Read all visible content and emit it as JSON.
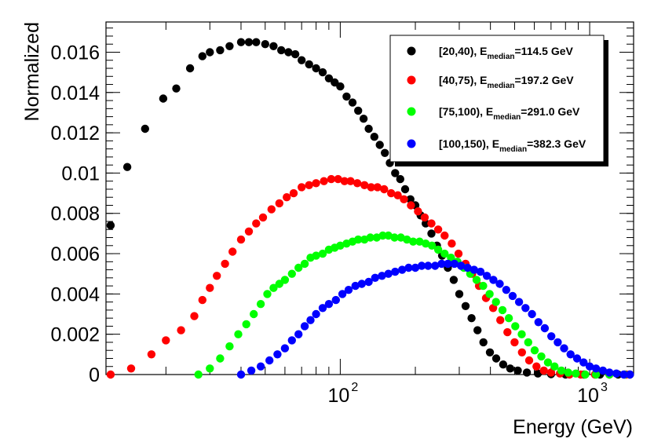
{
  "chart_data": {
    "type": "scatter",
    "title": "",
    "xlabel": "Energy (GeV)",
    "ylabel": "Normalized",
    "xscale": "log",
    "xlim": [
      11.5,
      1500
    ],
    "ylim": [
      0,
      0.0175
    ],
    "grid": false,
    "legend_position": "top-right",
    "y_tick_labels": [
      "0",
      "0.002",
      "0.004",
      "0.006",
      "0.008",
      "0.01",
      "0.012",
      "0.014",
      "0.016"
    ],
    "x_tick_labels": [
      {
        "base": "10",
        "exp": "2"
      },
      {
        "base": "10",
        "exp": "3"
      }
    ],
    "series": [
      {
        "name": "[20,40)",
        "legend_prefix": "[20,40), E",
        "legend_sub": "median",
        "legend_suffix": "=114.5 GeV",
        "color": "#000000",
        "points": [
          [
            12,
            0.0074
          ],
          [
            14,
            0.0103
          ],
          [
            16.5,
            0.0122
          ],
          [
            19.5,
            0.0137
          ],
          [
            22,
            0.0142
          ],
          [
            25,
            0.0152
          ],
          [
            28,
            0.0158
          ],
          [
            30,
            0.016
          ],
          [
            33,
            0.0161
          ],
          [
            36,
            0.0163
          ],
          [
            40,
            0.0165
          ],
          [
            43,
            0.0165
          ],
          [
            46,
            0.0165
          ],
          [
            50,
            0.0164
          ],
          [
            54,
            0.0163
          ],
          [
            58,
            0.0161
          ],
          [
            62,
            0.016
          ],
          [
            66,
            0.0159
          ],
          [
            70,
            0.0156
          ],
          [
            75,
            0.0154
          ],
          [
            80,
            0.0152
          ],
          [
            85,
            0.015
          ],
          [
            90,
            0.0147
          ],
          [
            95,
            0.0145
          ],
          [
            100,
            0.0143
          ],
          [
            106,
            0.0138
          ],
          [
            112,
            0.0135
          ],
          [
            118,
            0.0131
          ],
          [
            124,
            0.0127
          ],
          [
            130,
            0.0122
          ],
          [
            137,
            0.0118
          ],
          [
            144,
            0.0114
          ],
          [
            151,
            0.011
          ],
          [
            158,
            0.0105
          ],
          [
            166,
            0.01
          ],
          [
            174,
            0.0097
          ],
          [
            182,
            0.0092
          ],
          [
            191,
            0.0087
          ],
          [
            200,
            0.0084
          ],
          [
            210,
            0.0079
          ],
          [
            220,
            0.0075
          ],
          [
            232,
            0.007
          ],
          [
            244,
            0.0064
          ],
          [
            256,
            0.0059
          ],
          [
            270,
            0.0053
          ],
          [
            285,
            0.0047
          ],
          [
            300,
            0.004
          ],
          [
            318,
            0.0034
          ],
          [
            336,
            0.0028
          ],
          [
            355,
            0.0022
          ],
          [
            375,
            0.0016
          ],
          [
            398,
            0.0011
          ],
          [
            422,
            0.0008
          ],
          [
            450,
            0.0005
          ],
          [
            480,
            0.0003
          ],
          [
            515,
            0.0002
          ],
          [
            560,
            0.0001
          ],
          [
            620,
            5e-05
          ],
          [
            700,
            2e-05
          ],
          [
            800,
            0.0
          ],
          [
            950,
            0.0
          ],
          [
            1100,
            0.0
          ],
          [
            1300,
            0.0
          ],
          [
            1450,
            0.0
          ]
        ]
      },
      {
        "name": "[40,75)",
        "legend_prefix": "[40,75), E",
        "legend_sub": "median",
        "legend_suffix": "=197.2 GeV",
        "color": "#ff0000",
        "points": [
          [
            12,
            0.0
          ],
          [
            14.5,
            0.0003
          ],
          [
            17.5,
            0.001
          ],
          [
            20,
            0.0017
          ],
          [
            23,
            0.0022
          ],
          [
            26,
            0.0029
          ],
          [
            28,
            0.0037
          ],
          [
            30,
            0.0043
          ],
          [
            32,
            0.0049
          ],
          [
            34.5,
            0.0055
          ],
          [
            37,
            0.0061
          ],
          [
            40,
            0.0067
          ],
          [
            43,
            0.0071
          ],
          [
            46,
            0.0075
          ],
          [
            49,
            0.0078
          ],
          [
            53,
            0.0082
          ],
          [
            57,
            0.0085
          ],
          [
            61,
            0.0088
          ],
          [
            65,
            0.009
          ],
          [
            70,
            0.0093
          ],
          [
            75,
            0.0094
          ],
          [
            80,
            0.0095
          ],
          [
            86,
            0.0096
          ],
          [
            92,
            0.0097
          ],
          [
            98,
            0.0097
          ],
          [
            104,
            0.0096
          ],
          [
            110,
            0.0096
          ],
          [
            117,
            0.0095
          ],
          [
            125,
            0.0094
          ],
          [
            133,
            0.0093
          ],
          [
            141,
            0.0093
          ],
          [
            150,
            0.0092
          ],
          [
            160,
            0.009
          ],
          [
            170,
            0.0089
          ],
          [
            180,
            0.0087
          ],
          [
            192,
            0.0084
          ],
          [
            205,
            0.0081
          ],
          [
            218,
            0.0078
          ],
          [
            232,
            0.0075
          ],
          [
            247,
            0.0072
          ],
          [
            262,
            0.0069
          ],
          [
            280,
            0.0065
          ],
          [
            298,
            0.006
          ],
          [
            318,
            0.0055
          ],
          [
            338,
            0.005
          ],
          [
            360,
            0.0044
          ],
          [
            384,
            0.0038
          ],
          [
            410,
            0.0033
          ],
          [
            438,
            0.0027
          ],
          [
            468,
            0.0021
          ],
          [
            500,
            0.0016
          ],
          [
            535,
            0.0011
          ],
          [
            572,
            0.0007
          ],
          [
            612,
            0.0004
          ],
          [
            655,
            0.0002
          ],
          [
            700,
            0.0001
          ],
          [
            760,
            5e-05
          ],
          [
            830,
            0.0
          ],
          [
            920,
            0.0
          ],
          [
            1050,
            0.0
          ],
          [
            1200,
            0.0
          ],
          [
            1400,
            0.0
          ]
        ]
      },
      {
        "name": "[75,100)",
        "legend_prefix": "[75,100), E",
        "legend_sub": "median",
        "legend_suffix": "=291.0 GeV",
        "color": "#00ff00",
        "points": [
          [
            27,
            0.0
          ],
          [
            30,
            0.0003
          ],
          [
            33,
            0.0008
          ],
          [
            36,
            0.0014
          ],
          [
            39,
            0.002
          ],
          [
            42,
            0.0025
          ],
          [
            45,
            0.003
          ],
          [
            48,
            0.0035
          ],
          [
            51,
            0.004
          ],
          [
            54,
            0.0043
          ],
          [
            57,
            0.0045
          ],
          [
            60,
            0.0047
          ],
          [
            64,
            0.005
          ],
          [
            68,
            0.0053
          ],
          [
            72,
            0.0055
          ],
          [
            76,
            0.0058
          ],
          [
            80,
            0.0059
          ],
          [
            85,
            0.006
          ],
          [
            90,
            0.0062
          ],
          [
            95,
            0.0063
          ],
          [
            100,
            0.0064
          ],
          [
            106,
            0.0065
          ],
          [
            112,
            0.0066
          ],
          [
            118,
            0.0067
          ],
          [
            125,
            0.0067
          ],
          [
            132,
            0.0068
          ],
          [
            140,
            0.0068
          ],
          [
            148,
            0.0069
          ],
          [
            156,
            0.0069
          ],
          [
            165,
            0.0068
          ],
          [
            175,
            0.0068
          ],
          [
            185,
            0.0067
          ],
          [
            196,
            0.0066
          ],
          [
            208,
            0.0066
          ],
          [
            220,
            0.0065
          ],
          [
            233,
            0.0064
          ],
          [
            247,
            0.0062
          ],
          [
            262,
            0.006
          ],
          [
            278,
            0.0058
          ],
          [
            295,
            0.0056
          ],
          [
            313,
            0.0053
          ],
          [
            332,
            0.005
          ],
          [
            352,
            0.0047
          ],
          [
            374,
            0.0044
          ],
          [
            397,
            0.004
          ],
          [
            421,
            0.0036
          ],
          [
            447,
            0.0032
          ],
          [
            474,
            0.0028
          ],
          [
            503,
            0.0024
          ],
          [
            534,
            0.002
          ],
          [
            567,
            0.0016
          ],
          [
            602,
            0.0012
          ],
          [
            640,
            0.0009
          ],
          [
            680,
            0.0006
          ],
          [
            723,
            0.0004
          ],
          [
            770,
            0.0002
          ],
          [
            820,
            0.0001
          ],
          [
            880,
            5e-05
          ],
          [
            960,
            0.0
          ],
          [
            1060,
            0.0
          ],
          [
            1200,
            0.0
          ],
          [
            1380,
            0.0
          ]
        ]
      },
      {
        "name": "[100,150)",
        "legend_prefix": "[100,150), E",
        "legend_sub": "median",
        "legend_suffix": "=382.3 GeV",
        "color": "#0000ff",
        "points": [
          [
            40,
            0.0
          ],
          [
            44,
            0.0002
          ],
          [
            48,
            0.0004
          ],
          [
            52,
            0.0007
          ],
          [
            56,
            0.001
          ],
          [
            60,
            0.0013
          ],
          [
            64,
            0.0017
          ],
          [
            68,
            0.002
          ],
          [
            72,
            0.0024
          ],
          [
            76,
            0.0027
          ],
          [
            80,
            0.003
          ],
          [
            85,
            0.0033
          ],
          [
            90,
            0.0035
          ],
          [
            96,
            0.0037
          ],
          [
            102,
            0.004
          ],
          [
            108,
            0.0042
          ],
          [
            115,
            0.0044
          ],
          [
            122,
            0.0045
          ],
          [
            130,
            0.0046
          ],
          [
            138,
            0.0048
          ],
          [
            147,
            0.0049
          ],
          [
            156,
            0.005
          ],
          [
            166,
            0.0051
          ],
          [
            177,
            0.0052
          ],
          [
            188,
            0.0053
          ],
          [
            200,
            0.0053
          ],
          [
            212,
            0.0054
          ],
          [
            225,
            0.0054
          ],
          [
            240,
            0.0054
          ],
          [
            255,
            0.0055
          ],
          [
            270,
            0.0055
          ],
          [
            287,
            0.0055
          ],
          [
            305,
            0.0054
          ],
          [
            324,
            0.0053
          ],
          [
            344,
            0.0052
          ],
          [
            365,
            0.0051
          ],
          [
            387,
            0.0049
          ],
          [
            411,
            0.0047
          ],
          [
            436,
            0.0045
          ],
          [
            463,
            0.0042
          ],
          [
            491,
            0.0039
          ],
          [
            521,
            0.0036
          ],
          [
            553,
            0.0033
          ],
          [
            587,
            0.003
          ],
          [
            623,
            0.0026
          ],
          [
            661,
            0.0023
          ],
          [
            702,
            0.0019
          ],
          [
            745,
            0.0016
          ],
          [
            790,
            0.0013
          ],
          [
            838,
            0.001
          ],
          [
            890,
            0.0008
          ],
          [
            945,
            0.0006
          ],
          [
            1000,
            0.0004
          ],
          [
            1060,
            0.0003
          ],
          [
            1130,
            0.0002
          ],
          [
            1200,
            0.0001
          ],
          [
            1280,
            5e-05
          ],
          [
            1370,
            0.0
          ],
          [
            1450,
            0.0
          ]
        ]
      }
    ]
  }
}
